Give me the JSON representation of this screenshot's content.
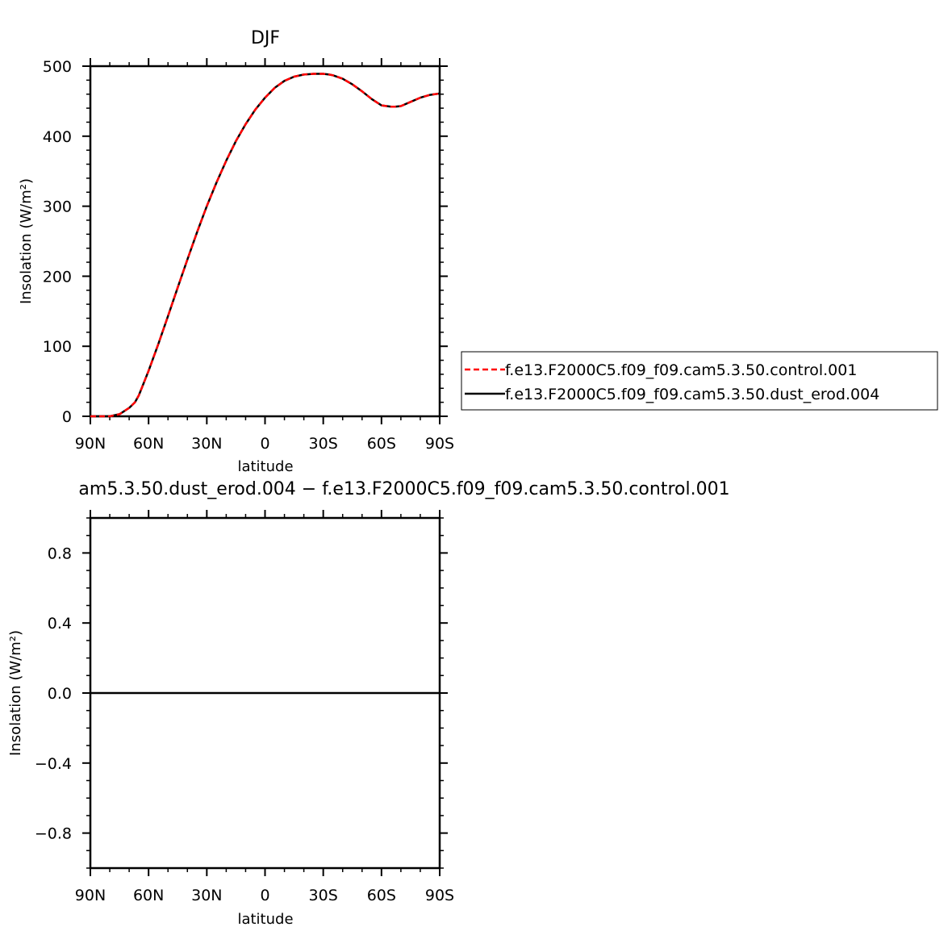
{
  "chart_data": [
    {
      "type": "line",
      "title": "DJF",
      "xlabel": "latitude",
      "ylabel": "Insolation (W/m²)",
      "xlim": [
        90,
        -90
      ],
      "ylim": [
        0,
        500
      ],
      "x_ticks": [
        90,
        60,
        30,
        0,
        -30,
        -60,
        -90
      ],
      "x_tick_labels": [
        "90N",
        "60N",
        "30N",
        "0",
        "30S",
        "60S",
        "90S"
      ],
      "y_ticks": [
        0,
        100,
        200,
        300,
        400,
        500
      ],
      "y_tick_labels": [
        "0",
        "100",
        "200",
        "300",
        "400",
        "500"
      ],
      "x": [
        90,
        85,
        80,
        75,
        70,
        67,
        65,
        60,
        55,
        50,
        45,
        40,
        35,
        30,
        25,
        20,
        15,
        10,
        5,
        0,
        -5,
        -10,
        -15,
        -20,
        -25,
        -30,
        -33,
        -35,
        -40,
        -45,
        -50,
        -55,
        -60,
        -65,
        -67,
        -70,
        -75,
        -80,
        -85,
        -90
      ],
      "series": [
        {
          "name": "f.e13.F2000C5.f09_f09.cam5.3.50.control.001",
          "color": "#ff0000",
          "dash": "dashed",
          "values": [
            0,
            0,
            0,
            3,
            12,
            20,
            30,
            65,
            103,
            143,
            184,
            224,
            263,
            300,
            334,
            365,
            393,
            417,
            438,
            455,
            469,
            479,
            485,
            488,
            489,
            489,
            488,
            487,
            482,
            474,
            464,
            453,
            444,
            442,
            442,
            443,
            449,
            455,
            459,
            461
          ]
        },
        {
          "name": "f.e13.F2000C5.f09_f09.cam5.3.50.dust_erod.004",
          "color": "#000000",
          "dash": "solid",
          "values": [
            0,
            0,
            0,
            3,
            12,
            20,
            30,
            65,
            103,
            143,
            184,
            224,
            263,
            300,
            334,
            365,
            393,
            417,
            438,
            455,
            469,
            479,
            485,
            488,
            489,
            489,
            488,
            487,
            482,
            474,
            464,
            453,
            444,
            442,
            442,
            443,
            449,
            455,
            459,
            461
          ]
        }
      ],
      "legend_position": "right"
    },
    {
      "type": "line",
      "title": "am5.3.50.dust_erod.004 − f.e13.F2000C5.f09_f09.cam5.3.50.control.001",
      "xlabel": "latitude",
      "ylabel": "Insolation (W/m²)",
      "xlim": [
        90,
        -90
      ],
      "ylim": [
        -1,
        1
      ],
      "x_ticks": [
        90,
        60,
        30,
        0,
        -30,
        -60,
        -90
      ],
      "x_tick_labels": [
        "90N",
        "60N",
        "30N",
        "0",
        "30S",
        "60S",
        "90S"
      ],
      "y_ticks": [
        -0.8,
        -0.4,
        0.0,
        0.4,
        0.8
      ],
      "y_tick_labels": [
        "−0.8",
        "−0.4",
        "0.0",
        "0.4",
        "0.8"
      ],
      "x": [
        90,
        -90
      ],
      "series": [
        {
          "color": "#000000",
          "values": [
            0,
            0
          ]
        }
      ]
    }
  ]
}
